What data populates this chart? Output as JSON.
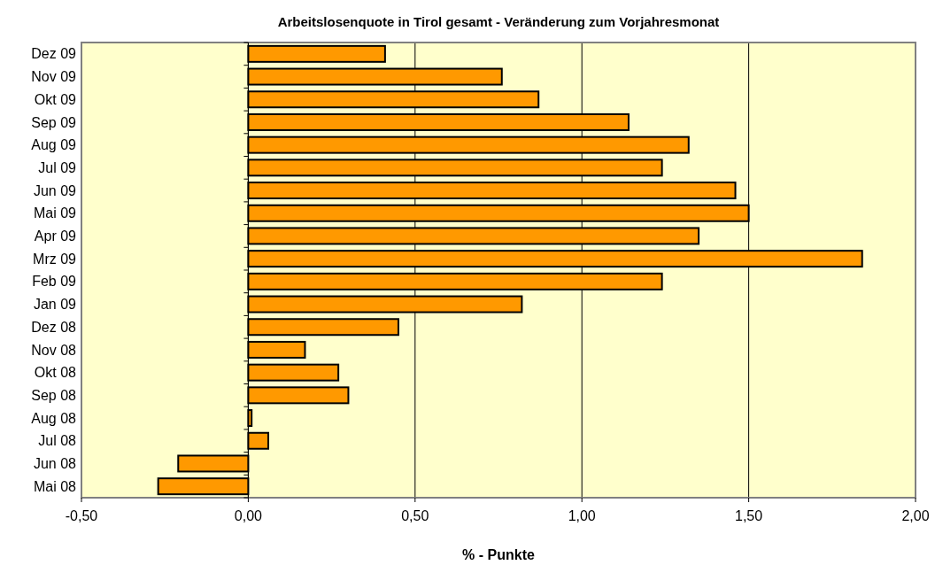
{
  "chart_data": {
    "type": "bar",
    "orientation": "horizontal",
    "title": "Arbeitslosenquote in Tirol gesamt - Veränderung zum Vorjahresmonat",
    "xlabel": "% - Punkte",
    "categories": [
      "Dez 09",
      "Nov 09",
      "Okt 09",
      "Sep 09",
      "Aug 09",
      "Jul 09",
      "Jun 09",
      "Mai 09",
      "Apr 09",
      "Mrz 09",
      "Feb 09",
      "Jan 09",
      "Dez 08",
      "Nov 08",
      "Okt 08",
      "Sep 08",
      "Aug 08",
      "Jul 08",
      "Jun 08",
      "Mai 08"
    ],
    "values": [
      0.41,
      0.76,
      0.87,
      1.14,
      1.32,
      1.24,
      1.46,
      1.5,
      1.35,
      1.84,
      1.24,
      0.82,
      0.45,
      0.17,
      0.27,
      0.3,
      0.01,
      0.06,
      -0.21,
      -0.27
    ],
    "color": "#ff9900",
    "xlim": [
      -0.5,
      2
    ],
    "xticks": [
      {
        "value": -0.5,
        "label": "-0,50"
      },
      {
        "value": 0,
        "label": "0,00"
      },
      {
        "value": 0.5,
        "label": "0,50"
      },
      {
        "value": 1,
        "label": "1,00"
      },
      {
        "value": 1.5,
        "label": "1,50"
      },
      {
        "value": 2,
        "label": "2,00"
      }
    ],
    "grid": "x"
  }
}
